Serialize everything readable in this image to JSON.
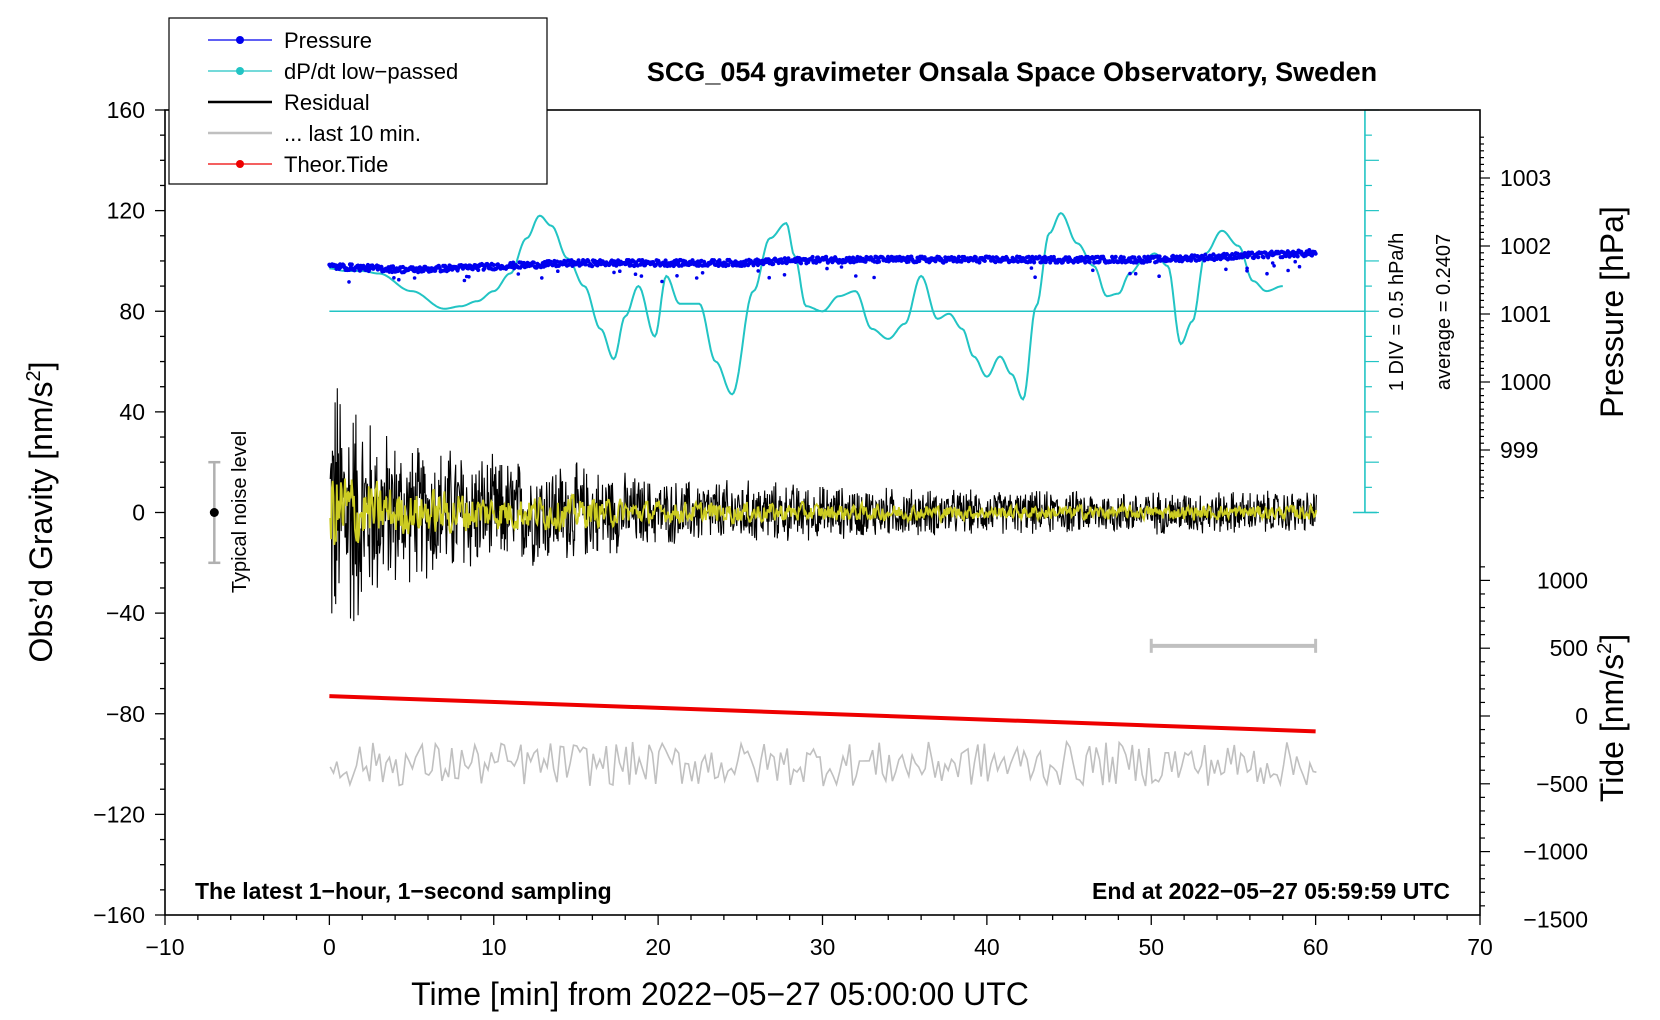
{
  "chart_data": {
    "type": "line",
    "title": "SCG_054 gravimeter Onsala Space Observatory, Sweden",
    "xlabel": "Time [min] from 2022−05−27 05:00:00 UTC",
    "ylabel_left": "Obs’d Gravity [nm/s",
    "ylabel_right_top": "Pressure [hPa]",
    "ylabel_right_bottom": "Tide [nm/s",
    "unit_superscript": "2",
    "unit_close": "]",
    "xlim": [
      -10,
      70
    ],
    "ylim_left": [
      -160,
      160
    ],
    "x_ticks": [
      "−10",
      "0",
      "10",
      "20",
      "30",
      "40",
      "50",
      "60",
      "70"
    ],
    "y_ticks_left": [
      "160",
      "120",
      "80",
      "40",
      "0",
      "−40",
      "−80",
      "−120",
      "−160"
    ],
    "pressure_ticks": [
      "1003",
      "1002",
      "1001",
      "1000",
      "999"
    ],
    "tide_ticks": [
      "1000",
      "500",
      "0",
      "−500",
      "−1000",
      "−1500"
    ],
    "legend": [
      {
        "label": "Pressure",
        "color": "#0000ee",
        "marker": true
      },
      {
        "label": "dP/dt low−passed",
        "color": "#22c4c4",
        "marker": true
      },
      {
        "label": "Residual",
        "color": "#000000",
        "marker": false
      },
      {
        "label": "... last 10 min.",
        "color": "#c0c0c0",
        "marker": false
      },
      {
        "label": "Theor.Tide",
        "color": "#ee0000",
        "marker": true
      }
    ],
    "notes": {
      "left": "The latest 1−hour, 1−second sampling",
      "right": "End at 2022−05−27 05:59:59 UTC",
      "noise": "Typical noise level",
      "scale": "1 DIV = 0.5 hPa/h",
      "average": "average = 0.2407"
    },
    "noise_bar": {
      "x": -7,
      "center": 0,
      "half_range": 20
    },
    "ten_min_bar": {
      "x_start": 50,
      "x_end": 60,
      "y": -53
    },
    "series": [
      {
        "name": "Pressure",
        "unit": "hPa",
        "color": "#0000ee",
        "x": [
          0,
          5,
          10,
          15,
          20,
          25,
          30,
          35,
          40,
          45,
          50,
          55,
          60
        ],
        "values": [
          1001.7,
          1001.65,
          1001.7,
          1001.75,
          1001.75,
          1001.75,
          1001.8,
          1001.8,
          1001.8,
          1001.8,
          1001.8,
          1001.85,
          1001.9
        ]
      },
      {
        "name": "dP/dt low−passed",
        "unit": "nm/s2 display scale",
        "color": "#22c4c4",
        "baseline": 80,
        "x": [
          0,
          1,
          2,
          3,
          5,
          7,
          8,
          9,
          10,
          11,
          12,
          12.8,
          13.5,
          14.5,
          15.5,
          16.5,
          17.3,
          18,
          18.8,
          19.8,
          20.5,
          21.3,
          22.5,
          23.5,
          24.5,
          25.8,
          26.8,
          27.8,
          28.3,
          29,
          30,
          31,
          32,
          33,
          34,
          35,
          36,
          37,
          37.7,
          38.5,
          39.2,
          40,
          40.8,
          41.5,
          42.2,
          43,
          43.8,
          44.5,
          45.5,
          46.5,
          47.3,
          48,
          48.7,
          49.5,
          50.2,
          51,
          51.8,
          52.5,
          53.3,
          54.3,
          55.3,
          56.2,
          57,
          58
        ],
        "values": [
          97,
          96,
          96,
          95,
          88,
          81,
          82,
          84,
          88,
          95,
          109,
          118,
          114,
          101,
          90,
          73,
          61,
          78,
          90,
          70,
          94,
          83,
          83,
          60,
          47,
          88,
          109,
          115,
          102,
          82,
          80,
          86,
          88,
          73,
          69,
          75,
          94,
          77,
          79,
          73,
          62,
          54,
          62,
          55,
          45,
          82,
          111,
          119,
          107,
          98,
          86,
          87,
          95,
          100,
          103,
          98,
          67,
          76,
          103,
          112,
          106,
          92,
          88,
          90
        ]
      },
      {
        "name": "Residual",
        "unit": "nm/s2",
        "color": "#000000",
        "envelope_x": [
          0,
          1,
          2,
          3,
          5,
          8,
          10,
          12,
          15,
          20,
          25,
          30,
          40,
          50,
          60
        ],
        "envelope_amplitude": [
          55,
          50,
          40,
          32,
          25,
          25,
          20,
          20,
          18,
          12,
          12,
          10,
          8,
          8,
          8
        ]
      },
      {
        "name": "... last 10 min.",
        "unit": "nm/s2",
        "color": "#c0c0c0",
        "center": -100,
        "amplitude": 8
      },
      {
        "name": "Theor.Tide",
        "unit": "nm/s2",
        "color": "#ee0000",
        "x": [
          0,
          60
        ],
        "values": [
          -73,
          -87
        ]
      }
    ]
  }
}
